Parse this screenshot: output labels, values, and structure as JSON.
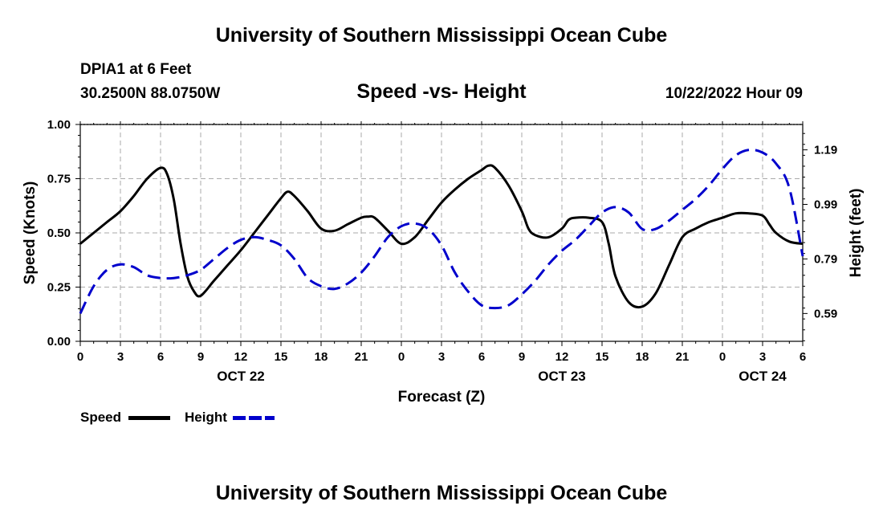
{
  "header": {
    "main_title": "University of Southern Mississippi Ocean Cube",
    "station": "DPIA1 at 6 Feet",
    "coords": "30.2500N  88.0750W",
    "chart_title": "Speed -vs- Height",
    "datetime": "10/22/2022 Hour 09"
  },
  "footer": {
    "repeat_title": "University of Southern Mississippi Ocean Cube"
  },
  "colors": {
    "speed": "#000000",
    "height": "#0000cc",
    "grid": "#aaaaaa"
  },
  "chart_data": {
    "type": "line",
    "title": "Speed -vs- Height",
    "xlabel": "Forecast (Z)",
    "ylabel": "Speed (Knots)",
    "y2label": "Height (feet)",
    "grid": true,
    "x_range_hours": [
      0,
      54
    ],
    "ylim": [
      0,
      1
    ],
    "y2lim": [
      0.488,
      1.283
    ],
    "yticks": [
      {
        "v": 0,
        "label": "0.00"
      },
      {
        "v": 0.25,
        "label": "0.25"
      },
      {
        "v": 0.5,
        "label": "0.50"
      },
      {
        "v": 0.75,
        "label": "0.75"
      },
      {
        "v": 1,
        "label": "1.00"
      }
    ],
    "y2ticks": [
      {
        "v": 0.59,
        "label": "0.59"
      },
      {
        "v": 0.79,
        "label": "0.79"
      },
      {
        "v": 0.99,
        "label": "0.99"
      },
      {
        "v": 1.19,
        "label": "1.19"
      }
    ],
    "xticks": [
      {
        "h": 0,
        "label": "0"
      },
      {
        "h": 3,
        "label": "3"
      },
      {
        "h": 6,
        "label": "6"
      },
      {
        "h": 9,
        "label": "9"
      },
      {
        "h": 12,
        "label": "12"
      },
      {
        "h": 15,
        "label": "15"
      },
      {
        "h": 18,
        "label": "18"
      },
      {
        "h": 21,
        "label": "21"
      },
      {
        "h": 24,
        "label": "0"
      },
      {
        "h": 27,
        "label": "3"
      },
      {
        "h": 30,
        "label": "6"
      },
      {
        "h": 33,
        "label": "9"
      },
      {
        "h": 36,
        "label": "12"
      },
      {
        "h": 39,
        "label": "15"
      },
      {
        "h": 42,
        "label": "18"
      },
      {
        "h": 45,
        "label": "21"
      },
      {
        "h": 48,
        "label": "0"
      },
      {
        "h": 51,
        "label": "3"
      },
      {
        "h": 54,
        "label": "6"
      }
    ],
    "date_labels": [
      {
        "h": 12,
        "label": "OCT 22"
      },
      {
        "h": 36,
        "label": "OCT 23"
      },
      {
        "h": 51,
        "label": "OCT 24"
      }
    ],
    "series": [
      {
        "name": "Speed",
        "axis": "left",
        "style": "solid",
        "x": [
          0,
          1,
          2,
          3,
          4,
          5,
          6,
          6.5,
          7,
          7.5,
          8,
          8.5,
          9,
          10,
          11,
          12,
          13,
          14,
          15,
          15.5,
          16,
          17,
          18,
          19,
          20,
          21,
          21.5,
          22,
          23,
          24,
          25,
          26,
          27,
          28,
          29,
          30,
          30.5,
          31,
          32,
          33,
          33.5,
          34,
          35,
          36,
          36.5,
          37,
          38,
          39,
          39.5,
          40,
          41,
          42,
          43,
          44,
          45,
          46,
          47,
          48,
          49,
          50,
          51,
          51.5,
          52,
          53,
          54
        ],
        "values": [
          0.45,
          0.5,
          0.55,
          0.6,
          0.67,
          0.75,
          0.8,
          0.77,
          0.65,
          0.45,
          0.3,
          0.23,
          0.21,
          0.28,
          0.35,
          0.42,
          0.5,
          0.58,
          0.66,
          0.69,
          0.67,
          0.6,
          0.52,
          0.51,
          0.54,
          0.57,
          0.575,
          0.57,
          0.51,
          0.45,
          0.48,
          0.56,
          0.64,
          0.7,
          0.75,
          0.79,
          0.81,
          0.8,
          0.72,
          0.6,
          0.52,
          0.49,
          0.48,
          0.52,
          0.56,
          0.57,
          0.57,
          0.55,
          0.45,
          0.3,
          0.18,
          0.16,
          0.22,
          0.35,
          0.48,
          0.52,
          0.55,
          0.57,
          0.59,
          0.59,
          0.58,
          0.54,
          0.5,
          0.46,
          0.45
        ]
      },
      {
        "name": "Height",
        "axis": "right",
        "style": "dashed",
        "x": [
          0,
          1,
          2,
          3,
          4,
          5,
          6,
          7,
          8,
          9,
          10,
          11,
          12,
          13,
          14,
          15,
          16,
          17,
          18,
          19,
          20,
          21,
          22,
          23,
          24,
          25,
          26,
          27,
          28,
          29,
          30,
          31,
          32,
          33,
          34,
          35,
          36,
          37,
          38,
          39,
          40,
          41,
          42,
          43,
          44,
          45,
          46,
          47,
          48,
          49,
          50,
          51,
          52,
          53,
          54
        ],
        "values": [
          0.59,
          0.69,
          0.75,
          0.77,
          0.76,
          0.73,
          0.72,
          0.72,
          0.73,
          0.75,
          0.79,
          0.83,
          0.86,
          0.87,
          0.86,
          0.84,
          0.79,
          0.72,
          0.69,
          0.68,
          0.7,
          0.74,
          0.8,
          0.87,
          0.91,
          0.92,
          0.9,
          0.84,
          0.74,
          0.67,
          0.62,
          0.61,
          0.62,
          0.66,
          0.71,
          0.77,
          0.82,
          0.86,
          0.91,
          0.96,
          0.98,
          0.96,
          0.9,
          0.9,
          0.93,
          0.97,
          1.01,
          1.06,
          1.12,
          1.17,
          1.19,
          1.18,
          1.14,
          1.05,
          0.8
        ]
      }
    ]
  },
  "legend": {
    "speed_label": "Speed",
    "height_label": "Height"
  }
}
